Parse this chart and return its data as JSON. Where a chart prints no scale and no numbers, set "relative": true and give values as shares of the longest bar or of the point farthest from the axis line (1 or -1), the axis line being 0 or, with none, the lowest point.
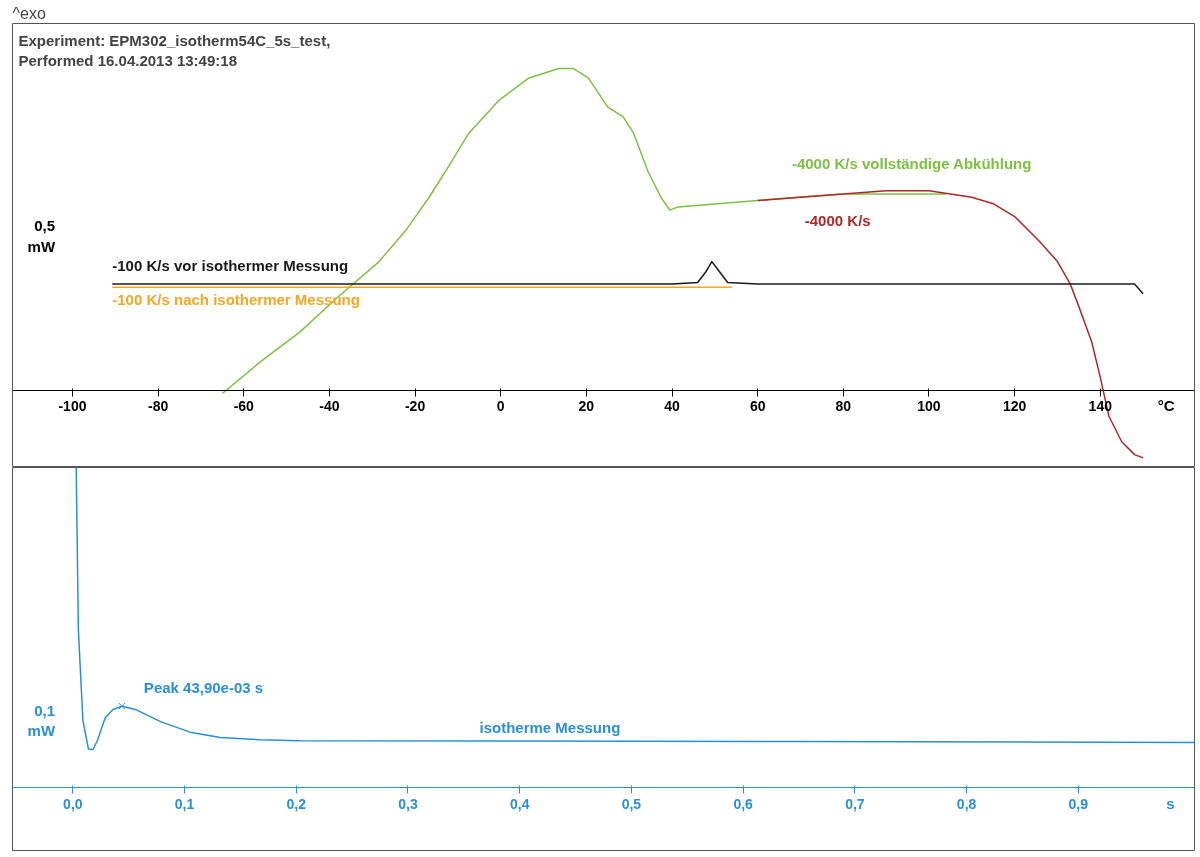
{
  "chart_data": [
    {
      "type": "line",
      "title": "Experiment: EPM302_isotherm54C_5s_test,\nPerformed 16.04.2013 13:49:18",
      "xlabel": "°C",
      "annotations": [
        "^exo",
        "0,5 mW"
      ],
      "relative": true,
      "tick_labels": "x",
      "xlim": [
        -114,
        162
      ],
      "xticks": [
        -100,
        -80,
        -60,
        -40,
        -20,
        0,
        20,
        40,
        60,
        80,
        100,
        120,
        140
      ],
      "series": [
        {
          "name": "-4000 K/s vollständige Abkühlung",
          "color": "#7cc142",
          "x": [
            -65,
            -56,
            -47,
            -38,
            -28.4,
            -22,
            -16.7,
            -12,
            -7.4,
            -0.5,
            6.5,
            13.5,
            17,
            20.5,
            25,
            28.6,
            31,
            34.4,
            37.4,
            39.5,
            41.4,
            50.7,
            60,
            69.3,
            80,
            92.6,
            104
          ],
          "values": [
            -0.01,
            0.09,
            0.18,
            0.29,
            0.4,
            0.5,
            0.6,
            0.7,
            0.8,
            0.9,
            0.97,
            1.0,
            1.0,
            0.97,
            0.88,
            0.85,
            0.8,
            0.68,
            0.6,
            0.56,
            0.57,
            0.58,
            0.59,
            0.6,
            0.61,
            0.61,
            0.61
          ]
        },
        {
          "name": "-4000 K/s",
          "color": "#b0282a",
          "x": [
            60,
            70,
            80,
            90,
            100,
            110,
            115,
            120,
            126,
            130,
            133,
            135,
            138,
            140,
            142,
            145,
            148,
            150
          ],
          "values": [
            0.59,
            0.6,
            0.61,
            0.62,
            0.62,
            0.6,
            0.58,
            0.54,
            0.46,
            0.4,
            0.33,
            0.26,
            0.15,
            0.04,
            -0.08,
            -0.16,
            -0.2,
            -0.21
          ]
        },
        {
          "name": "-100 K/s vor isothermer Messung",
          "color": "#1a1a1a",
          "x": [
            -90.7,
            0,
            40,
            46,
            48,
            49.3,
            51,
            53,
            60,
            100,
            148,
            150
          ],
          "values": [
            0.33,
            0.33,
            0.33,
            0.335,
            0.37,
            0.4,
            0.37,
            0.335,
            0.33,
            0.33,
            0.33,
            0.3
          ]
        },
        {
          "name": "-100 K/s nach isothermer Messung",
          "color": "#f5a623",
          "x": [
            -90.7,
            0,
            40,
            54
          ],
          "values": [
            0.32,
            0.32,
            0.32,
            0.32
          ]
        }
      ]
    },
    {
      "type": "line",
      "xlabel": "s",
      "annotations": [
        "0,1 mW",
        {
          "text": "Peak      43,90e-03 s",
          "x": 0.0439,
          "y": 0.254
        }
      ],
      "relative": true,
      "tick_labels": "x",
      "xlim": [
        -0.054,
        1.004
      ],
      "xticks": [
        {
          "value": 0,
          "label": "0,0"
        },
        {
          "value": 0.1,
          "label": "0,1"
        },
        {
          "value": 0.2,
          "label": "0,2"
        },
        {
          "value": 0.3,
          "label": "0,3"
        },
        {
          "value": 0.4,
          "label": "0,4"
        },
        {
          "value": 0.5,
          "label": "0,5"
        },
        {
          "value": 0.6,
          "label": "0,6"
        },
        {
          "value": 0.7,
          "label": "0,7"
        },
        {
          "value": 0.8,
          "label": "0,8"
        },
        {
          "value": 0.9,
          "label": "0,9"
        }
      ],
      "series": [
        {
          "name": "isotherme Messung",
          "color": "#2a8fd8",
          "x": [
            0.003,
            0.005,
            0.009,
            0.014,
            0.018,
            0.022,
            0.029,
            0.036,
            0.044,
            0.056,
            0.079,
            0.105,
            0.132,
            0.168,
            0.203,
            0.382,
            0.649,
            1.004
          ],
          "values": [
            1.0,
            0.49,
            0.21,
            0.12,
            0.118,
            0.147,
            0.218,
            0.244,
            0.254,
            0.244,
            0.205,
            0.173,
            0.156,
            0.149,
            0.146,
            0.145,
            0.144,
            0.141
          ]
        }
      ]
    }
  ]
}
